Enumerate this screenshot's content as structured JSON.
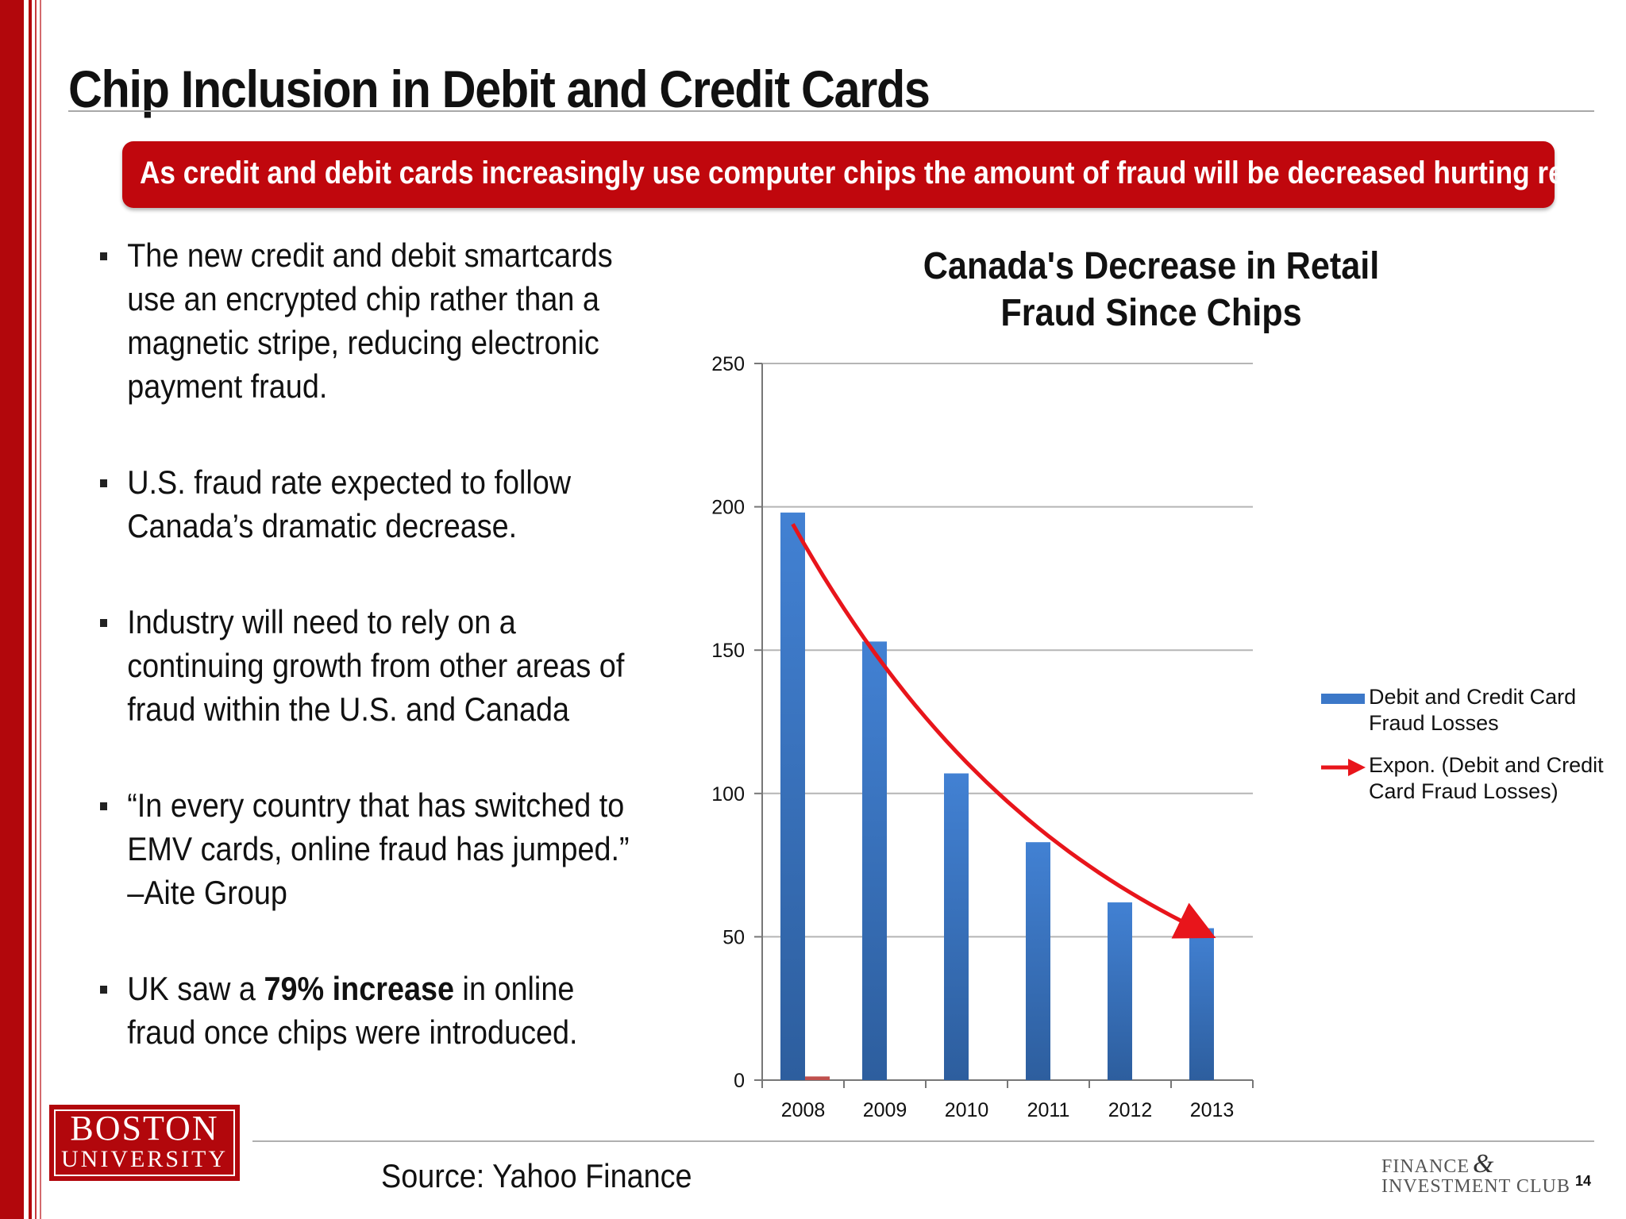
{
  "slide": {
    "title": "Chip Inclusion in Debit and Credit Cards",
    "banner": "As credit and debit cards increasingly use computer chips the amount of fraud will be decreased hurting revenue.",
    "page_number": "14",
    "source": "Source: Yahoo Finance",
    "accent_color": "#c0070d"
  },
  "bullets": [
    {
      "lines": [
        "The new credit and debit smartcards",
        "use an encrypted chip rather than a",
        "magnetic stripe, reducing electronic",
        "payment fraud."
      ]
    },
    {
      "lines": [
        "U.S. fraud rate expected to follow",
        "Canada’s dramatic decrease."
      ]
    },
    {
      "lines": [
        "Industry will need to rely on a",
        "continuing growth from other areas of",
        "fraud within the U.S. and Canada"
      ]
    },
    {
      "lines": [
        "“In every country that has switched to",
        "EMV cards, online fraud has jumped.”",
        "–Aite Group"
      ]
    },
    {
      "pre": "UK saw a ",
      "bold": "79% increase",
      "post": " in online",
      "line2": "fraud once chips were introduced."
    }
  ],
  "logos": {
    "bu_line1": "BOSTON",
    "bu_line2": "UNIVERSITY",
    "club_line1": "FINANCE",
    "club_amp": "&",
    "club_line2": "INVESTMENT CLUB"
  },
  "chart_data": {
    "type": "bar",
    "title_lines": [
      "Canada's Decrease in Retail",
      "Fraud Since Chips"
    ],
    "categories": [
      "2008",
      "2009",
      "2010",
      "2011",
      "2012",
      "2013"
    ],
    "series": [
      {
        "name": "Debit and Credit Card Fraud Losses",
        "values": [
          198,
          153,
          107,
          83,
          62,
          53
        ],
        "color": "#3c78c8"
      }
    ],
    "secondary_bar": {
      "category": "2008",
      "value": 1,
      "color": "#c0504d"
    },
    "trendline": {
      "name": "Expon. (Debit and Credit Card Fraud Losses)",
      "type": "exponential",
      "color": "#e8151b",
      "start": [
        0,
        194
      ],
      "end": [
        5,
        52
      ]
    },
    "legend": [
      {
        "lines": [
          "Debit and Credit Card",
          "Fraud Losses"
        ]
      },
      {
        "lines": [
          "Expon. (Debit and Credit",
          "Card Fraud Losses)"
        ]
      }
    ],
    "ylim": [
      0,
      250
    ],
    "yticks": [
      0,
      50,
      100,
      150,
      200,
      250
    ],
    "grid": true,
    "legend_position": "right"
  }
}
